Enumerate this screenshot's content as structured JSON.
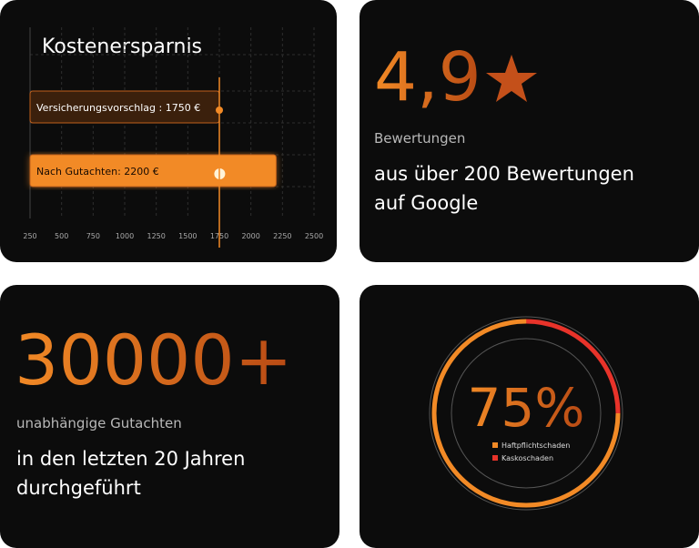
{
  "cost_card": {
    "chart": {
      "type": "bar",
      "title": "Kostenersparnis",
      "values": [
        1750,
        2200
      ],
      "value_labels": [
        "Versicherungsvorschlag : 1750 €",
        "Nach Gutachten: 2200 €"
      ],
      "colors": [
        "#3b200c",
        "#f28a26"
      ],
      "reference_line": 1750,
      "xlim": [
        250,
        2500
      ],
      "xticks": [
        250,
        500,
        750,
        1000,
        1250,
        1500,
        1750,
        2000,
        2250,
        2500
      ],
      "grid": true
    }
  },
  "rating_card": {
    "rating": "4,9",
    "label": "Bewertungen",
    "text_lines": [
      "aus über 200 Bewertungen",
      "auf Google"
    ]
  },
  "count_card": {
    "count": "30000+",
    "label": "unabhängige Gutachten",
    "text_lines": [
      "in den letzten 20 Jahren",
      "durchgeführt"
    ]
  },
  "share_card": {
    "chart": {
      "type": "donut",
      "center_label": "75%",
      "series": [
        {
          "name": "Kaskoschaden",
          "color": "#e8332a",
          "values": [
            25
          ]
        },
        {
          "name": "Haftpflichtschaden",
          "color": "#f28a26",
          "values": [
            75
          ]
        }
      ]
    }
  }
}
